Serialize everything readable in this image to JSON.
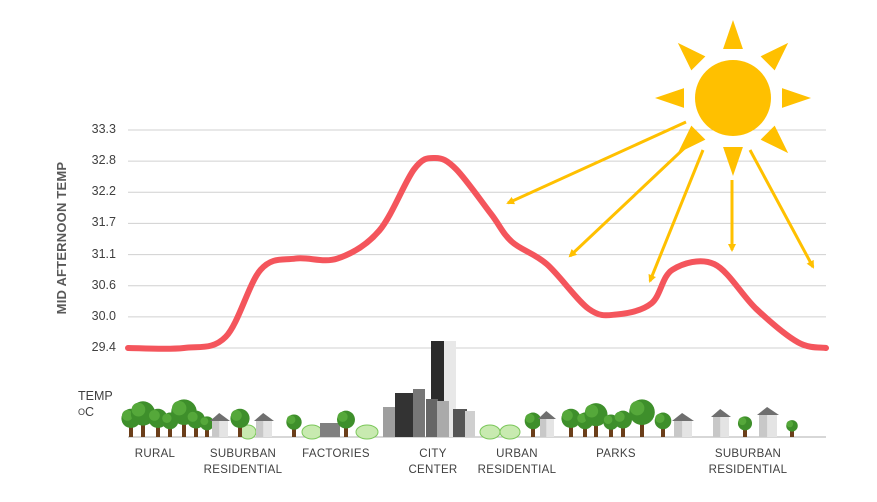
{
  "chart_data": {
    "type": "line",
    "ylabel": "MID AFTERNOON TEMP",
    "y_ticks": [
      "33.3",
      "32.8",
      "32.2",
      "31.7",
      "31.1",
      "30.6",
      "30.0",
      "29.4"
    ],
    "ylim": [
      29.4,
      33.3
    ],
    "grid": true,
    "legend": "TEMP",
    "unit": "oC",
    "categories": [
      "RURAL",
      "SUBURBAN RESIDENTIAL",
      "FACTORIES",
      "CITY CENTER",
      "URBAN RESIDENTIAL",
      "PARKS",
      "SUBURBAN RESIDENTIAL"
    ],
    "category_lines": [
      [
        "RURAL"
      ],
      [
        "SUBURBAN",
        "RESIDENTIAL"
      ],
      [
        "FACTORIES"
      ],
      [
        "CITY",
        "CENTER"
      ],
      [
        "URBAN",
        "RESIDENTIAL"
      ],
      [
        "PARKS"
      ],
      [
        "SUBURBAN",
        "RESIDENTIAL"
      ]
    ],
    "series": [
      {
        "color": "#f4555c",
        "x": [
          0.0,
          0.08,
          0.14,
          0.19,
          0.24,
          0.3,
          0.36,
          0.41,
          0.44,
          0.47,
          0.52,
          0.55,
          0.6,
          0.66,
          0.7,
          0.75,
          0.78,
          0.84,
          0.9,
          0.96,
          1.0
        ],
        "y": [
          29.4,
          29.4,
          29.6,
          30.8,
          31.0,
          31.0,
          31.5,
          32.6,
          32.8,
          32.6,
          31.8,
          31.3,
          30.9,
          30.1,
          30.0,
          30.2,
          30.8,
          30.9,
          30.1,
          29.5,
          29.4
        ]
      }
    ],
    "sun_color": "#ffc000",
    "arrow_color": "#ffc000",
    "arrow_count": 5
  },
  "icons": {
    "sun": "sun-icon",
    "tree": "tree-icon",
    "house": "house-icon",
    "building": "building-icon",
    "bush": "bush-icon"
  }
}
